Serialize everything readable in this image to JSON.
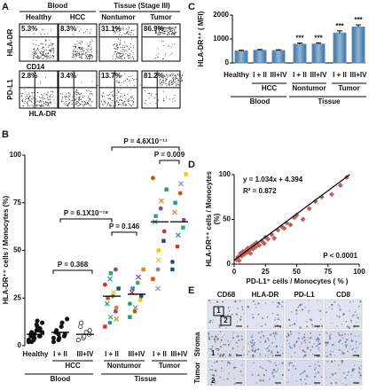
{
  "panel_labels": [
    "A",
    "B",
    "C",
    "D",
    "E"
  ],
  "panel_a": {
    "sections": [
      "Blood",
      "Tissue (Stage III)"
    ],
    "samples": [
      "Healthy",
      "HCC",
      "Nontumor",
      "Tumor"
    ],
    "rows": [
      {
        "y": "HLA-DR",
        "x": "CD14"
      },
      {
        "y": "PD-L1",
        "x": "HLA-DR"
      }
    ],
    "percents": [
      [
        "5.3%",
        "8.3%",
        "31.1%",
        "86.9%"
      ],
      [
        "2.8%",
        "3.4%",
        "13.7%",
        "81.2%"
      ]
    ]
  },
  "chart_data": [
    {
      "type": "bar",
      "ylabel": "HLA-DR⁺⁺ ( MFI)",
      "categories": [
        "Healthy",
        "I + II",
        "III+IV",
        "I + II",
        "III+IV",
        "I + II",
        "III+IV"
      ],
      "group_labels": [
        "HCC",
        "Nontumor",
        "Tumor"
      ],
      "section_labels": [
        "Blood",
        "Tissue"
      ],
      "values": [
        500,
        530,
        520,
        780,
        790,
        1250,
        1500
      ],
      "errors": [
        30,
        30,
        30,
        50,
        50,
        90,
        90
      ],
      "stars": [
        null,
        null,
        null,
        "***",
        "***",
        "***",
        "***"
      ],
      "color": "#5b8fbd",
      "ylim": [
        0,
        2000
      ],
      "yticks": [
        0,
        1000,
        2000
      ]
    },
    {
      "type": "strip",
      "ylabel": "HLA-DR⁺⁺ cells / Monocytes (%)",
      "categories": [
        "Healthy",
        "I + II",
        "III+IV",
        "I + II",
        "III+IV",
        "I + II",
        "III+IV"
      ],
      "group_labels": [
        "HCC",
        "Nontumor",
        "Tumor"
      ],
      "section_labels": [
        "Blood",
        "Tissue"
      ],
      "points": [
        [
          2,
          3,
          4,
          5,
          5,
          6,
          7,
          8,
          10,
          12,
          3,
          4,
          6,
          8,
          9,
          5,
          2,
          11,
          13,
          7
        ],
        [
          2,
          3,
          4,
          5,
          6,
          7,
          8,
          10,
          12,
          14,
          4,
          6
        ],
        [
          3,
          4,
          5,
          6,
          8,
          10,
          12,
          7
        ],
        [
          10,
          12,
          15,
          18,
          20,
          22,
          25,
          26,
          28,
          30,
          32,
          35,
          38,
          40,
          14
        ],
        [
          15,
          18,
          20,
          24,
          26,
          28,
          30,
          33,
          36,
          40,
          22
        ],
        [
          35,
          40,
          45,
          55,
          60,
          65,
          68,
          72,
          76,
          82,
          88,
          30,
          50
        ],
        [
          40,
          52,
          58,
          62,
          66,
          70,
          75,
          80,
          85,
          90,
          44
        ]
      ],
      "means": [
        6,
        7,
        6,
        26,
        27,
        65,
        65
      ],
      "annotations": [
        "P = 0.368",
        "P = 6.1X10⁻¹⁸",
        "P = 0.146",
        "P = 4.6X10⁻¹¹",
        "P = 0.009"
      ],
      "palette": [
        "#c0392b",
        "#2e86c1",
        "#27ae60",
        "#8e44ad",
        "#e67e22",
        "#16a085",
        "#d35400",
        "#7f8c8d",
        "#f1c40f",
        "#1a5276"
      ],
      "ylim": [
        0,
        100
      ],
      "yticks": [
        0,
        25,
        50,
        75,
        100
      ]
    },
    {
      "type": "scatter",
      "xlabel": "PD-L1⁺ cells / Monocytes ( % )",
      "ylabel": [
        "HLA-DR⁺⁺ cells / Monocytes",
        "(%)"
      ],
      "x": [
        2,
        3,
        4,
        5,
        6,
        7,
        8,
        9,
        10,
        11,
        12,
        13,
        14,
        15,
        16,
        17,
        18,
        20,
        22,
        24,
        25,
        27,
        30,
        32,
        35,
        38,
        40,
        42,
        45,
        48,
        50,
        55,
        60,
        65,
        70,
        78,
        85,
        90
      ],
      "y": [
        5,
        8,
        4,
        12,
        9,
        14,
        11,
        15,
        13,
        18,
        16,
        12,
        20,
        17,
        22,
        19,
        24,
        21,
        26,
        23,
        30,
        28,
        33,
        29,
        38,
        42,
        40,
        46,
        44,
        52,
        55,
        50,
        62,
        70,
        75,
        78,
        88,
        97
      ],
      "fit": {
        "slope": 1.034,
        "intercept": 4.394
      },
      "equation": "y = 1.034x + 4.394",
      "r2": "R² = 0.872",
      "p_value": "P < 0.0001",
      "color": "#c0605a",
      "xlim": [
        0,
        100
      ],
      "xticks": [
        0,
        25,
        50,
        75,
        100
      ],
      "ylim": [
        0,
        100
      ],
      "yticks": [
        0,
        50,
        100
      ]
    }
  ],
  "panel_e": {
    "headers": [
      "CD68",
      "HLA-DR",
      "PD-L1",
      "CD8"
    ],
    "rows": [
      "Stroma",
      "Tumor"
    ],
    "insets": [
      "1",
      "2"
    ]
  }
}
